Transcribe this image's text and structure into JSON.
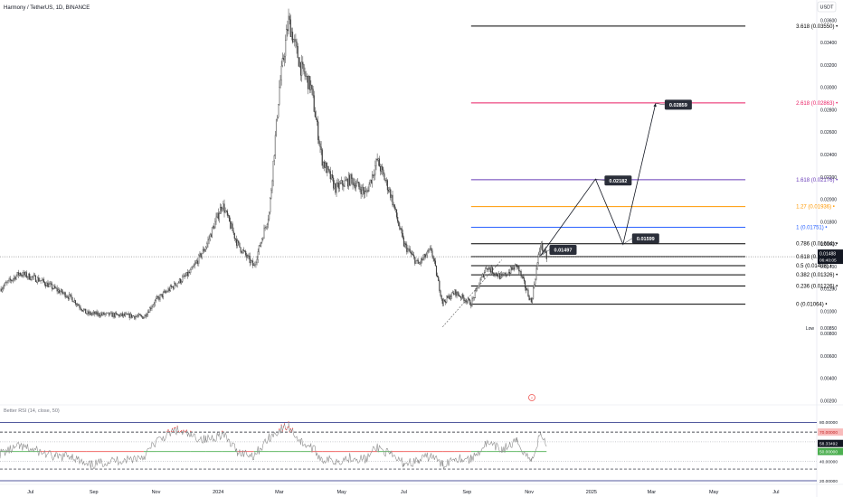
{
  "header": {
    "symbol_line": "Harmony / TetherUS, 1D, BINANCE",
    "currency": "USDT"
  },
  "colors": {
    "candle": "#3a3a3a",
    "fib_black": "#000000",
    "fib_blue": "#2962ff",
    "fib_orange": "#ff9800",
    "fib_purple": "#673ab7",
    "fib_red": "#e91e63",
    "rsi_line": "#8c8c8c",
    "rsi_overbought": "#ef5350",
    "rsi_mid_above": "#4caf50",
    "rsi_mid_below": "#ef5350",
    "rsi_upper": "#1a237e",
    "price_tag": "#131722",
    "projection_label": "#2a2e39"
  },
  "chart_data": {
    "type": "candlestick",
    "ylim": [
      0.0018,
      0.0367
    ],
    "price_axis_ticks": [
      "0.03600",
      "0.03400",
      "0.03200",
      "0.03000",
      "0.02800",
      "0.02600",
      "0.02400",
      "0.02200",
      "0.02000",
      "0.01800",
      "0.01600",
      "0.01400",
      "0.01200",
      "0.01000",
      "0.00800",
      "0.00600",
      "0.00400",
      "0.00200"
    ],
    "price_axis_values": [
      0.036,
      0.034,
      0.032,
      0.03,
      0.028,
      0.026,
      0.024,
      0.022,
      0.02,
      0.018,
      0.016,
      0.014,
      0.012,
      0.01,
      0.008,
      0.006,
      0.004,
      0.002
    ],
    "x_labels": [
      "Jul",
      "Sep",
      "Nov",
      "2024",
      "Mar",
      "May",
      "Jul",
      "Sep",
      "Nov",
      "2025",
      "Mar",
      "May",
      "Jul"
    ],
    "x_label_dates": [
      "2023-07-01",
      "2023-09-01",
      "2023-11-01",
      "2024-01-01",
      "2024-03-01",
      "2024-05-01",
      "2024-07-01",
      "2024-09-01",
      "2024-11-01",
      "2025-01-01",
      "2025-03-01",
      "2025-05-01",
      "2025-07-01"
    ],
    "x_start_date": "2023-06-01",
    "x_end_date": "2025-08-10",
    "price_path": [
      [
        "2023-06-01",
        0.012
      ],
      [
        "2023-06-20",
        0.0134
      ],
      [
        "2023-07-10",
        0.0128
      ],
      [
        "2023-07-25",
        0.012
      ],
      [
        "2023-08-10",
        0.0112
      ],
      [
        "2023-08-25",
        0.0098
      ],
      [
        "2023-09-15",
        0.0097
      ],
      [
        "2023-10-05",
        0.0096
      ],
      [
        "2023-10-20",
        0.0095
      ],
      [
        "2023-11-01",
        0.011
      ],
      [
        "2023-11-20",
        0.0124
      ],
      [
        "2023-12-05",
        0.0135
      ],
      [
        "2023-12-20",
        0.0158
      ],
      [
        "2024-01-05",
        0.0196
      ],
      [
        "2024-01-20",
        0.016
      ],
      [
        "2024-02-05",
        0.014
      ],
      [
        "2024-02-20",
        0.0188
      ],
      [
        "2024-03-01",
        0.03
      ],
      [
        "2024-03-10",
        0.036
      ],
      [
        "2024-03-22",
        0.0318
      ],
      [
        "2024-04-01",
        0.03
      ],
      [
        "2024-04-12",
        0.0235
      ],
      [
        "2024-04-25",
        0.021
      ],
      [
        "2024-05-10",
        0.0218
      ],
      [
        "2024-05-25",
        0.0205
      ],
      [
        "2024-06-05",
        0.0235
      ],
      [
        "2024-06-18",
        0.0205
      ],
      [
        "2024-07-01",
        0.016
      ],
      [
        "2024-07-15",
        0.0142
      ],
      [
        "2024-07-28",
        0.0155
      ],
      [
        "2024-08-08",
        0.0108
      ],
      [
        "2024-08-20",
        0.0117
      ],
      [
        "2024-09-05",
        0.0107
      ],
      [
        "2024-09-20",
        0.014
      ],
      [
        "2024-10-05",
        0.013
      ],
      [
        "2024-10-20",
        0.0141
      ],
      [
        "2024-11-03",
        0.0108
      ],
      [
        "2024-11-12",
        0.016
      ],
      [
        "2024-11-18",
        0.0148
      ]
    ],
    "last_price": "0.01488",
    "countdown": "06:40:05",
    "low_label": "Low",
    "low_value": "0.00850",
    "fib_levels": [
      {
        "ratio": "3.618",
        "label": "3.618 (0.03550)",
        "price": 0.0355,
        "color": "#000000"
      },
      {
        "ratio": "2.618",
        "label": "2.618 (0.02863)",
        "price": 0.02863,
        "color": "#e91e63"
      },
      {
        "ratio": "1.618",
        "label": "1.618 (0.02176)",
        "price": 0.02176,
        "color": "#673ab7"
      },
      {
        "ratio": "1.27",
        "label": "1.27 (0.01936)",
        "price": 0.01936,
        "color": "#ff9800"
      },
      {
        "ratio": "1",
        "label": "1 (0.01751)",
        "price": 0.01751,
        "color": "#2962ff"
      },
      {
        "ratio": "0.786",
        "label": "0.786 (0.01604)",
        "price": 0.01604,
        "color": "#000000"
      },
      {
        "ratio": "0.618",
        "label": "0.618 (0.01489)",
        "price": 0.01489,
        "color": "#000000"
      },
      {
        "ratio": "0.5",
        "label": "0.5 (0.01408)",
        "price": 0.01408,
        "color": "#000000"
      },
      {
        "ratio": "0.382",
        "label": "0.382 (0.01326)",
        "price": 0.01326,
        "color": "#000000"
      },
      {
        "ratio": "0.236",
        "label": "0.236 (0.01226)",
        "price": 0.01226,
        "color": "#000000"
      },
      {
        "ratio": "0",
        "label": "0 (0.01064)",
        "price": 0.01064,
        "color": "#000000"
      }
    ],
    "fib_start_date": "2024-09-05",
    "fib_end_date": "2025-06-01",
    "projection_path": [
      [
        "2024-11-12",
        0.01497
      ],
      [
        "2025-01-05",
        0.02182
      ],
      [
        "2025-02-01",
        0.01599
      ],
      [
        "2025-03-05",
        0.02859
      ]
    ],
    "projection_labels": [
      "0.01497",
      "0.02182",
      "0.01599",
      "0.02859"
    ],
    "trendline": [
      [
        "2024-08-08",
        0.0086
      ],
      [
        "2024-10-05",
        0.0146
      ]
    ],
    "rsi": {
      "title": "Better RSI (14, close, 50)",
      "ylim": [
        20,
        85
      ],
      "levels": [
        {
          "value": 80,
          "label": "80.00000",
          "color": "#1a237e",
          "style": "solid"
        },
        {
          "value": 70,
          "label": "70.00000",
          "color": "#ef5350",
          "style": "tag"
        },
        {
          "value": 58.33492,
          "label": "58.33492",
          "color": "#131722",
          "style": "tag"
        },
        {
          "value": 50,
          "label": "50.00000",
          "color": "#4caf50",
          "style": "tag"
        },
        {
          "value": 40,
          "label": "40.00000",
          "color": "#000000",
          "style": "none"
        },
        {
          "value": 20,
          "label": "20.00000",
          "color": "#1a237e",
          "style": "solid"
        }
      ],
      "dashed_levels": [
        70,
        32
      ],
      "dotted_levels": [
        60,
        40
      ],
      "mid_level": 50,
      "path": [
        [
          "2023-06-01",
          48
        ],
        [
          "2023-06-20",
          55
        ],
        [
          "2023-07-10",
          50
        ],
        [
          "2023-07-25",
          44
        ],
        [
          "2023-08-10",
          46
        ],
        [
          "2023-08-25",
          35
        ],
        [
          "2023-09-15",
          40
        ],
        [
          "2023-10-05",
          42
        ],
        [
          "2023-10-20",
          45
        ],
        [
          "2023-11-01",
          60
        ],
        [
          "2023-11-20",
          72
        ],
        [
          "2023-12-05",
          66
        ],
        [
          "2023-12-20",
          62
        ],
        [
          "2024-01-05",
          68
        ],
        [
          "2024-01-20",
          50
        ],
        [
          "2024-02-05",
          46
        ],
        [
          "2024-02-20",
          64
        ],
        [
          "2024-03-01",
          72
        ],
        [
          "2024-03-10",
          76
        ],
        [
          "2024-03-22",
          60
        ],
        [
          "2024-04-01",
          55
        ],
        [
          "2024-04-12",
          42
        ],
        [
          "2024-04-25",
          40
        ],
        [
          "2024-05-10",
          44
        ],
        [
          "2024-05-25",
          42
        ],
        [
          "2024-06-05",
          55
        ],
        [
          "2024-06-18",
          46
        ],
        [
          "2024-07-01",
          38
        ],
        [
          "2024-07-15",
          40
        ],
        [
          "2024-07-28",
          46
        ],
        [
          "2024-08-08",
          36
        ],
        [
          "2024-08-20",
          44
        ],
        [
          "2024-09-05",
          42
        ],
        [
          "2024-09-20",
          58
        ],
        [
          "2024-10-05",
          52
        ],
        [
          "2024-10-20",
          60
        ],
        [
          "2024-11-03",
          40
        ],
        [
          "2024-11-12",
          68
        ],
        [
          "2024-11-18",
          58
        ]
      ]
    }
  }
}
